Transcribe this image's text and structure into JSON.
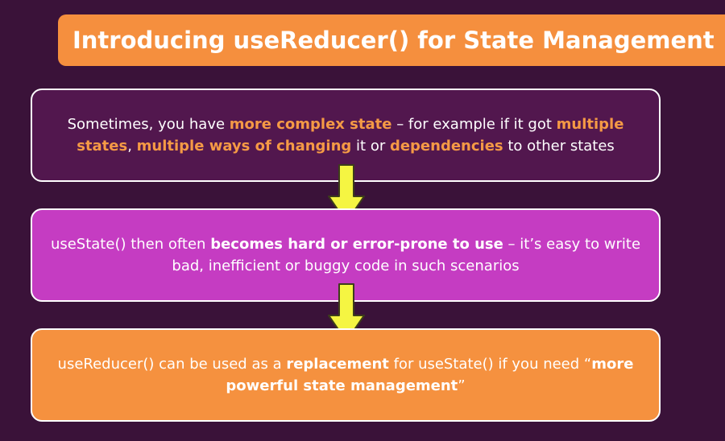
{
  "title": "Introducing useReducer() for State Management",
  "boxes": [
    {
      "segments": [
        {
          "text": "Sometimes, you have ",
          "style": "plain"
        },
        {
          "text": "more complex state",
          "style": "highlight"
        },
        {
          "text": " – for example if it got ",
          "style": "plain"
        },
        {
          "text": "multiple states",
          "style": "highlight"
        },
        {
          "text": ", ",
          "style": "plain"
        },
        {
          "text": "multiple ways of changing",
          "style": "highlight"
        },
        {
          "text": " it or ",
          "style": "plain"
        },
        {
          "text": "dependencies",
          "style": "highlight"
        },
        {
          "text": " to other states",
          "style": "plain"
        }
      ]
    },
    {
      "segments": [
        {
          "text": "useState() then often ",
          "style": "plain"
        },
        {
          "text": "becomes hard or error-prone to use",
          "style": "bold"
        },
        {
          "text": " – it’s easy to write bad, inefficient or buggy code in such scenarios",
          "style": "plain"
        }
      ]
    },
    {
      "segments": [
        {
          "text": "useReducer() can be used as a ",
          "style": "plain"
        },
        {
          "text": "replacement",
          "style": "bold"
        },
        {
          "text": " for useState() if you need “",
          "style": "plain"
        },
        {
          "text": "more powerful state management",
          "style": "bold"
        },
        {
          "text": "”",
          "style": "plain"
        }
      ]
    }
  ],
  "colors": {
    "background": "#3a1239",
    "accent": "#f58f3e",
    "box1": "#52174e",
    "box2": "#c53cc2",
    "box3": "#f5913f",
    "arrow": "#f5f542"
  }
}
